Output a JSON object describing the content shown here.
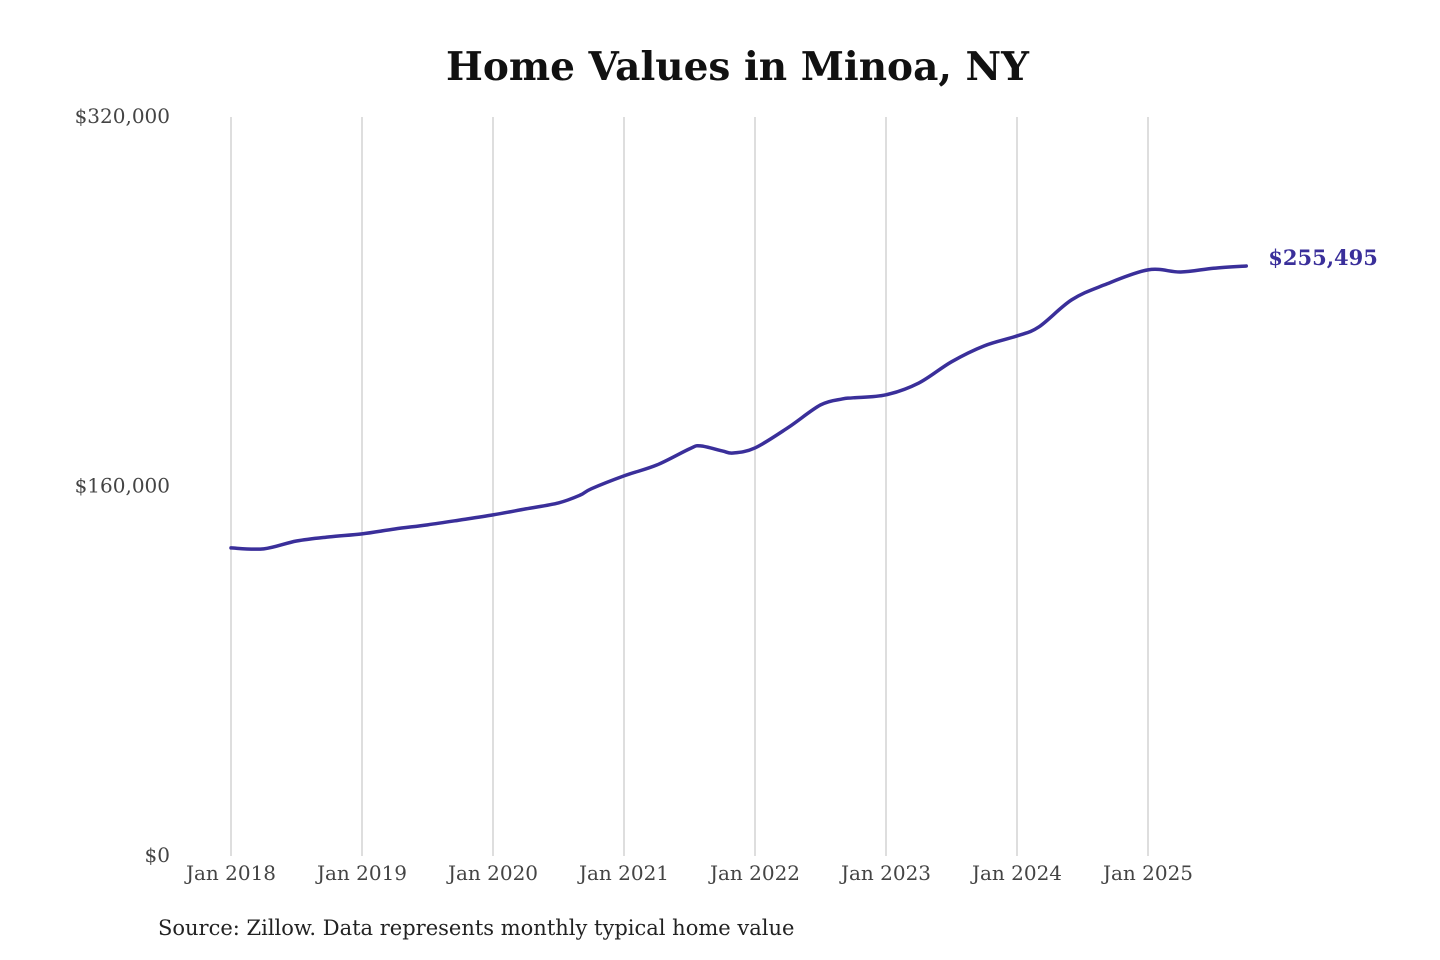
{
  "chart_data": {
    "type": "line",
    "title": "Home Values in Minoa, NY",
    "source": "Source: Zillow. Data represents monthly typical home value",
    "xlabel": "",
    "ylabel": "",
    "ylim": [
      0,
      320000
    ],
    "y_ticks": [
      0,
      160000,
      320000
    ],
    "y_tick_labels": [
      "$0",
      "$160,000",
      "$320,000"
    ],
    "x_ticks": [
      "2018-01",
      "2019-01",
      "2020-01",
      "2021-01",
      "2022-01",
      "2023-01",
      "2024-01",
      "2025-01"
    ],
    "x_tick_labels": [
      "Jan 2018",
      "Jan 2019",
      "Jan 2020",
      "Jan 2021",
      "Jan 2022",
      "Jan 2023",
      "Jan 2024",
      "Jan 2025"
    ],
    "grid": "vertical lines at x ticks",
    "line_color": "#3a2f9a",
    "end_label": "$255,495",
    "series": [
      {
        "x": [
          "2018-01",
          "2018-04",
          "2018-07",
          "2018-10",
          "2019-01",
          "2019-04",
          "2019-07",
          "2019-10",
          "2020-01",
          "2020-04",
          "2020-07",
          "2020-09",
          "2020-10",
          "2021-01",
          "2021-04",
          "2021-07",
          "2021-08",
          "2021-10",
          "2021-11",
          "2022-01",
          "2022-04",
          "2022-07",
          "2022-09",
          "2022-10",
          "2023-01",
          "2023-04",
          "2023-07",
          "2023-10",
          "2024-01",
          "2024-03",
          "2024-06",
          "2024-09",
          "2025-01",
          "2025-04",
          "2025-07",
          "2025-10"
        ],
        "y": [
          133400,
          133000,
          136400,
          138200,
          139500,
          141600,
          143400,
          145500,
          147700,
          150300,
          152900,
          156300,
          159000,
          164600,
          169300,
          176300,
          177600,
          175400,
          174500,
          176700,
          185400,
          195300,
          197900,
          198400,
          199700,
          204800,
          214000,
          220900,
          225200,
          229100,
          240800,
          247300,
          253800,
          252900,
          254500,
          255495
        ]
      }
    ]
  }
}
